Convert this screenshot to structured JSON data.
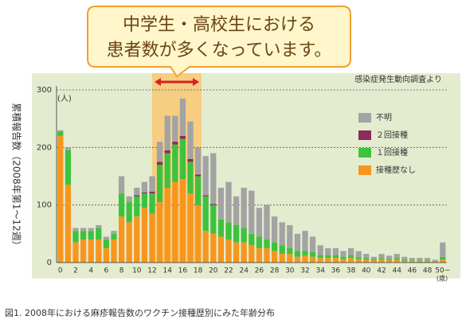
{
  "chart_data": {
    "type": "stacked-bar",
    "callout": [
      "中学生・高校生における",
      "患者数が多くなっています。"
    ],
    "source": "感染症発生動向調査より",
    "y_label": "累積報告数（2008年第1～12週）",
    "y_unit": "(人)",
    "x_unit": "(歳)",
    "caption": "図1.  2008年における麻疹報告数のワクチン接種歴別にみた年齢分布",
    "categories": [
      "0",
      null,
      "2",
      null,
      "4",
      null,
      "6",
      null,
      "8",
      null,
      "10",
      null,
      "12",
      null,
      "14",
      null,
      "16",
      null,
      "18",
      null,
      "20",
      null,
      "22",
      null,
      "24",
      null,
      "26",
      null,
      "28",
      null,
      "30",
      null,
      "32",
      null,
      "34",
      null,
      "36",
      null,
      "38",
      null,
      "40",
      null,
      "42",
      null,
      "44",
      null,
      "46",
      null,
      "48",
      null,
      "50~"
    ],
    "series": [
      {
        "name": "不明",
        "color": "#a3a3a3",
        "values": [
          2,
          5,
          5,
          5,
          5,
          5,
          5,
          5,
          30,
          10,
          13,
          18,
          27,
          35,
          60,
          45,
          65,
          65,
          47,
          68,
          88,
          55,
          70,
          50,
          70,
          75,
          50,
          60,
          45,
          40,
          40,
          30,
          35,
          27,
          17,
          12,
          12,
          10,
          12,
          10,
          7,
          4,
          7,
          6,
          7,
          5,
          4,
          4,
          4,
          2,
          25
        ]
      },
      {
        "name": "２回接種",
        "color": "#8e2a5c",
        "values": [
          0,
          0,
          0,
          0,
          0,
          0,
          0,
          0,
          0,
          0,
          2,
          2,
          3,
          5,
          5,
          5,
          5,
          5,
          3,
          2,
          2,
          0,
          0,
          0,
          0,
          0,
          0,
          0,
          0,
          0,
          0,
          0,
          0,
          0,
          0,
          0,
          0,
          0,
          0,
          0,
          0,
          0,
          0,
          0,
          0,
          0,
          0,
          0,
          0,
          0,
          0
        ]
      },
      {
        "name": "１回接種",
        "color": "#3ec23e",
        "values": [
          8,
          60,
          20,
          15,
          15,
          20,
          15,
          10,
          40,
          35,
          35,
          25,
          35,
          65,
          60,
          65,
          70,
          55,
          50,
          60,
          50,
          30,
          30,
          30,
          25,
          20,
          20,
          15,
          15,
          15,
          10,
          10,
          8,
          8,
          5,
          5,
          5,
          4,
          5,
          4,
          3,
          2,
          3,
          2,
          3,
          2,
          1,
          1,
          1,
          1,
          5
        ]
      },
      {
        "name": "接種歴なし",
        "color": "#f7961e",
        "values": [
          220,
          135,
          35,
          40,
          40,
          40,
          25,
          40,
          80,
          70,
          80,
          95,
          85,
          105,
          130,
          140,
          145,
          120,
          100,
          55,
          50,
          45,
          40,
          35,
          35,
          30,
          25,
          25,
          20,
          15,
          15,
          10,
          12,
          10,
          8,
          8,
          8,
          6,
          8,
          6,
          5,
          4,
          5,
          4,
          5,
          3,
          3,
          3,
          3,
          2,
          5
        ]
      }
    ],
    "ylim": [
      0,
      300
    ],
    "yticks": [
      0,
      100,
      200,
      300
    ],
    "grid": true
  }
}
